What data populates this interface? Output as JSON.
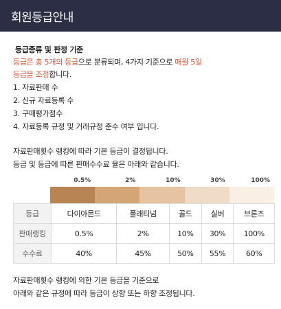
{
  "header": {
    "title": "회원등급안내"
  },
  "section": {
    "title": "등급종류 및 판정 기준",
    "intro_line1_a": "등급은 총 5개의 등급",
    "intro_line1_b": "으로 분류되며, 4가지 기준으로 ",
    "intro_line1_c": "매월 5일",
    "intro_line2_a": "등급을 조정",
    "intro_line2_b": "합니다.",
    "criteria": [
      "1.  자료판매 수",
      "2.  신규 자료등록 수",
      "3.  구매평가점수",
      "4.  자료등록 규정 및 거래규정 준수 여부 입니다."
    ],
    "desc_line1": "자료판매횟수 랭킹에 따라 기본 등급이 결정됩니다.",
    "desc_line2": "등급 및 등급에 따른 판매수수료 율은 아래와 같습니다."
  },
  "bar": {
    "labels": [
      "0.5%",
      "2%",
      "10%",
      "30%",
      "100%"
    ],
    "colors": [
      "#b98453",
      "#d4a676",
      "#e6c4a1",
      "#f0dcc6",
      "#f9efe4"
    ]
  },
  "table": {
    "header_label": "등급",
    "grades": [
      "다이아몬드",
      "플래티넘",
      "골드",
      "실버",
      "브론즈"
    ],
    "rows": [
      {
        "label": "판매랭킹",
        "values": [
          "0.5%",
          "2%",
          "10%",
          "30%",
          "100%"
        ]
      },
      {
        "label": "수수료",
        "values": [
          "40%",
          "45%",
          "50%",
          "55%",
          "60%"
        ]
      }
    ]
  },
  "footer": {
    "line1": "자료판매횟수 랭킹에 의한 기본 등급을 기준으로",
    "line2": "아래와 같은 규정에 따라 등급이 상향 또는 하향 조정됩니다."
  }
}
